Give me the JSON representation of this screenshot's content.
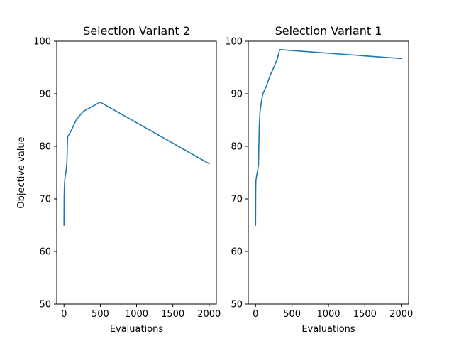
{
  "chart_data": [
    {
      "type": "line",
      "title": "Selection Variant 2",
      "xlabel": "Evaluations",
      "ylabel": "Objective value",
      "xlim": [
        -100,
        2100
      ],
      "ylim": [
        50,
        100
      ],
      "xticks": [
        0,
        500,
        1000,
        1500,
        2000
      ],
      "yticks": [
        50,
        60,
        70,
        80,
        90,
        100
      ],
      "grid": false,
      "color": "#1f77b4",
      "series": [
        {
          "x": [
            0,
            1,
            2,
            5,
            10,
            20,
            30,
            40,
            50,
            100,
            170,
            270,
            500,
            2000
          ],
          "y": [
            65.0,
            68.0,
            70.0,
            72.0,
            73.5,
            74.5,
            75.5,
            77.0,
            81.8,
            83.0,
            85.1,
            86.7,
            88.4,
            76.7
          ]
        }
      ]
    },
    {
      "type": "line",
      "title": "Selection Variant 1",
      "xlabel": "Evaluations",
      "ylabel": "",
      "xlim": [
        -100,
        2100
      ],
      "ylim": [
        50,
        100
      ],
      "xticks": [
        0,
        500,
        1000,
        1500,
        2000
      ],
      "yticks": [
        50,
        60,
        70,
        80,
        90,
        100
      ],
      "grid": false,
      "color": "#1f77b4",
      "series": [
        {
          "x": [
            0,
            1,
            2,
            3,
            5,
            10,
            20,
            30,
            40,
            45,
            50,
            60,
            80,
            100,
            150,
            200,
            250,
            300,
            330,
            2000
          ],
          "y": [
            65.0,
            68.0,
            71.0,
            72.5,
            73.5,
            74.0,
            74.8,
            75.5,
            76.5,
            80.0,
            83.5,
            86.5,
            88.5,
            90.0,
            91.5,
            93.5,
            95.0,
            96.7,
            98.4,
            96.7
          ]
        }
      ]
    }
  ]
}
